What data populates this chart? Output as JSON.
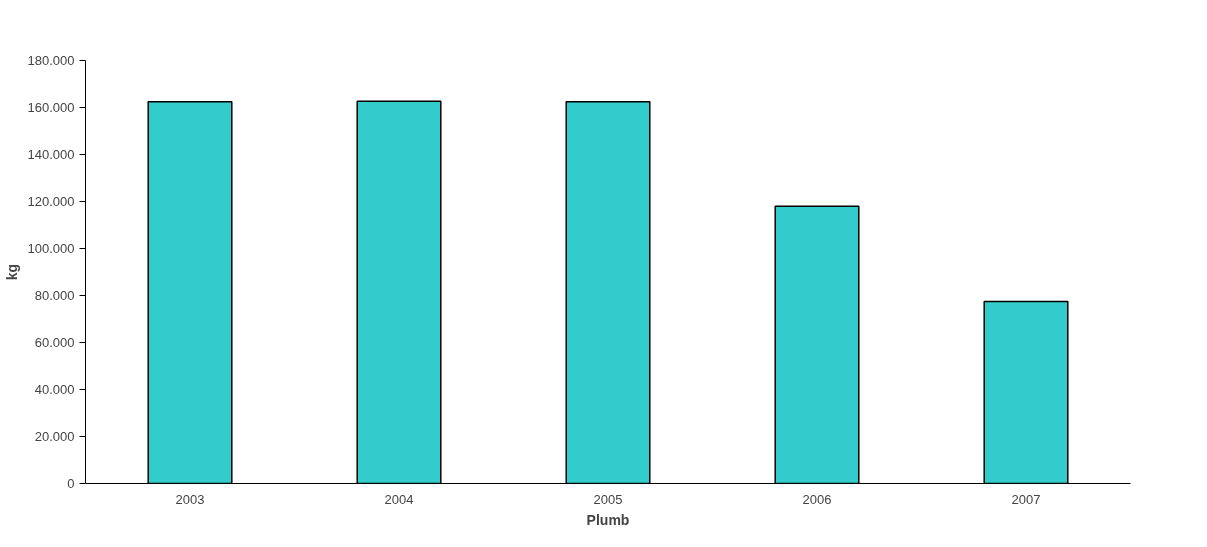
{
  "chart_data": {
    "type": "bar",
    "xlabel": "Plumb",
    "ylabel": "kg",
    "categories": [
      "2003",
      "2004",
      "2005",
      "2006",
      "2007"
    ],
    "values": [
      162500,
      162700,
      162500,
      118000,
      77500
    ],
    "color": "#33cccc",
    "ylim": [
      0,
      180000
    ],
    "yticks": [
      0,
      {
        "value": 20000,
        "label": "20.000"
      },
      {
        "value": 40000,
        "label": "40.000"
      },
      {
        "value": 60000,
        "label": "60.000"
      },
      {
        "value": 80000,
        "label": "80.000"
      },
      {
        "value": 100000,
        "label": "100.000"
      },
      {
        "value": 120000,
        "label": "120.000"
      },
      {
        "value": 140000,
        "label": "140.000"
      },
      {
        "value": 160000,
        "label": "160.000"
      },
      {
        "value": 180000,
        "label": "180.000"
      }
    ],
    "grid": false
  }
}
